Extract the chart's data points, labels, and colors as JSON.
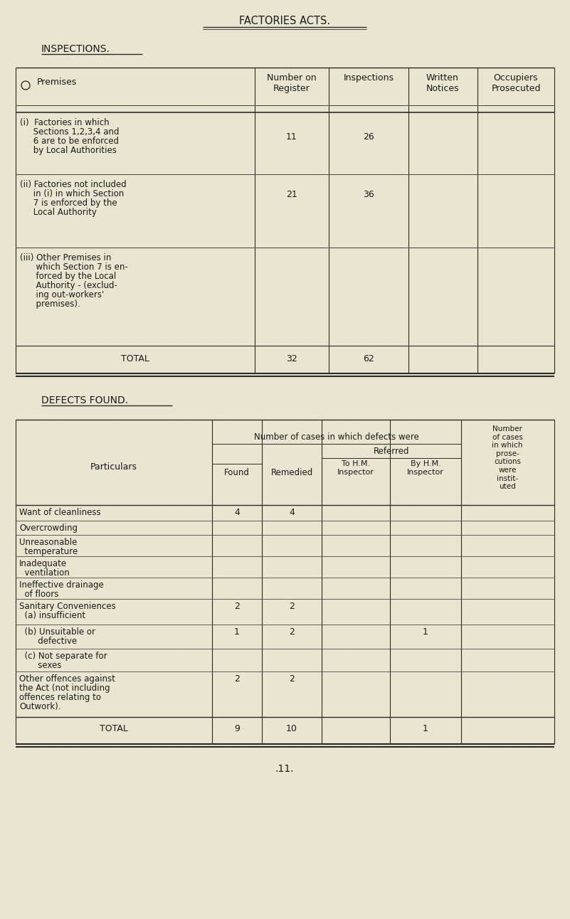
{
  "bg_color": "#e9e5d0",
  "text_color": "#1a1a1a",
  "page_title": "FACTORIES ACTS.",
  "section1_title": "INSPECTIONS.",
  "section2_title": "DEFECTS FOUND.",
  "page_number": ".11.",
  "insp_rows": [
    {
      "label_lines": [
        "(i)  Factories in which",
        "     Sections 1,2,3,4 and",
        "     6 are to be enforced",
        "     by Local Authorities"
      ],
      "register": "11",
      "inspections": "26"
    },
    {
      "label_lines": [
        "(ii) Factories not included",
        "     in (i) in which Section",
        "     7 is enforced by the",
        "     Local Authority"
      ],
      "register": "21",
      "inspections": "36"
    },
    {
      "label_lines": [
        "(iii) Other Premises in",
        "      which Section 7 is en-",
        "      forced by the Local",
        "      Authority - (exclud-",
        "      ing out-workers'",
        "      premises)."
      ],
      "register": "",
      "inspections": ""
    }
  ],
  "insp_total": [
    "TOTAL",
    "32",
    "62"
  ],
  "defects_rows": [
    {
      "label_lines": [
        "Want of cleanliness"
      ],
      "found": "4",
      "remedied": "4",
      "to_hm": "",
      "by_hm": "",
      "prose": ""
    },
    {
      "label_lines": [
        "Overcrowding"
      ],
      "found": "",
      "remedied": "",
      "to_hm": "",
      "by_hm": "",
      "prose": ""
    },
    {
      "label_lines": [
        "Unreasonable",
        "  temperature"
      ],
      "found": "",
      "remedied": "",
      "to_hm": "",
      "by_hm": "",
      "prose": ""
    },
    {
      "label_lines": [
        "Inadequate",
        "  ventilation"
      ],
      "found": "",
      "remedied": "",
      "to_hm": "",
      "by_hm": "",
      "prose": ""
    },
    {
      "label_lines": [
        "Ineffective drainage",
        "  of floors"
      ],
      "found": "",
      "remedied": "",
      "to_hm": "",
      "by_hm": "",
      "prose": ""
    },
    {
      "label_lines": [
        "Sanitary Conveniences",
        "  (a) insufficient"
      ],
      "found": "2",
      "remedied": "2",
      "to_hm": "",
      "by_hm": "",
      "prose": ""
    },
    {
      "label_lines": [
        "  (b) Unsuitable or",
        "       defective"
      ],
      "found": "1",
      "remedied": "2",
      "to_hm": "",
      "by_hm": "1",
      "prose": ""
    },
    {
      "label_lines": [
        "  (c) Not separate for",
        "       sexes"
      ],
      "found": "",
      "remedied": "",
      "to_hm": "",
      "by_hm": "",
      "prose": ""
    },
    {
      "label_lines": [
        "Other offences against",
        "the Act (not including",
        "offences relating to",
        "Outwork)."
      ],
      "found": "2",
      "remedied": "2",
      "to_hm": "",
      "by_hm": "",
      "prose": ""
    }
  ],
  "defects_total": [
    "TOTAL",
    "9",
    "10",
    "",
    "1",
    ""
  ]
}
